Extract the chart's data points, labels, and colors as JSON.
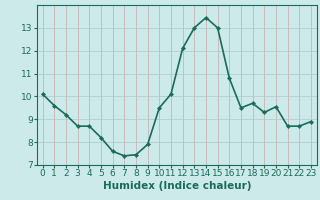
{
  "x": [
    0,
    1,
    2,
    3,
    4,
    5,
    6,
    7,
    8,
    9,
    10,
    11,
    12,
    13,
    14,
    15,
    16,
    17,
    18,
    19,
    20,
    21,
    22,
    23
  ],
  "y": [
    10.1,
    9.6,
    9.2,
    8.7,
    8.7,
    8.2,
    7.6,
    7.4,
    7.45,
    7.9,
    9.5,
    10.1,
    12.1,
    13.0,
    13.45,
    13.0,
    10.8,
    9.5,
    9.7,
    9.3,
    9.55,
    8.7,
    8.7,
    8.9
  ],
  "line_color": "#1a6b5a",
  "marker": "D",
  "marker_size": 2.2,
  "bg_color": "#cceaea",
  "grid_color_major": "#b8c8c8",
  "grid_color_minor": "#d8b8b8",
  "xlabel": "Humidex (Indice chaleur)",
  "ylim": [
    7,
    14
  ],
  "xlim": [
    -0.5,
    23.5
  ],
  "yticks": [
    7,
    8,
    9,
    10,
    11,
    12,
    13
  ],
  "xticks": [
    0,
    1,
    2,
    3,
    4,
    5,
    6,
    7,
    8,
    9,
    10,
    11,
    12,
    13,
    14,
    15,
    16,
    17,
    18,
    19,
    20,
    21,
    22,
    23
  ],
  "xlabel_fontsize": 7.5,
  "tick_fontsize": 6.5,
  "line_width": 1.2
}
